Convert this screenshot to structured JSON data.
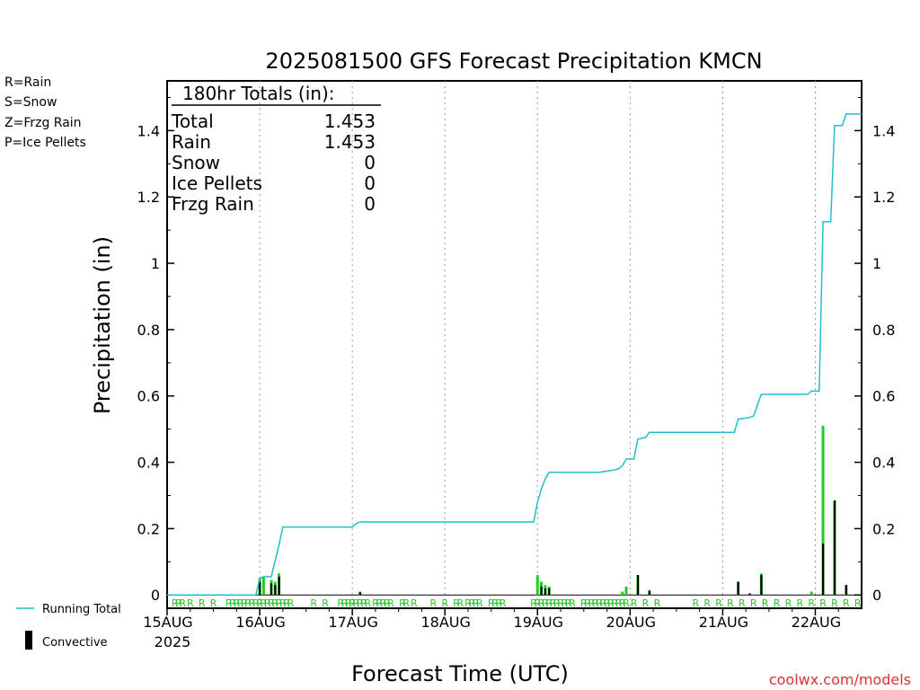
{
  "title": "2025081500 GFS Forecast Precipitation KMCN",
  "legend_types": [
    {
      "label": "R=Rain",
      "color": "#22cc22"
    },
    {
      "label": "S=Snow",
      "color": "#4444ee"
    },
    {
      "label": "Z=Frzg Rain",
      "color": "#ee8833"
    },
    {
      "label": "P=Ice Pellets",
      "color": "#ee2299"
    }
  ],
  "totals": {
    "header": "180hr Totals (in):",
    "rows": [
      {
        "label": "Total",
        "value": "1.453"
      },
      {
        "label": "Rain",
        "value": "1.453"
      },
      {
        "label": "Snow",
        "value": "0"
      },
      {
        "label": "Ice Pellets",
        "value": "0"
      },
      {
        "label": "Frzg Rain",
        "value": "0"
      }
    ]
  },
  "bottom_legend": {
    "running_total": "Running Total",
    "convective": "Convective"
  },
  "watermark": "coolwx.com/models",
  "colors": {
    "running_total": "#20c0c8",
    "total_bar": "#22cc22",
    "convective_bar": "#000000",
    "rain_marker": "#22cc22",
    "grid": "#999999"
  },
  "chart_data": {
    "type": "bar",
    "title": "2025081500 GFS Forecast Precipitation KMCN",
    "xlabel": "Forecast Time (UTC)",
    "ylabel": "Precipitation (in)",
    "xlim_hours": [
      0,
      180
    ],
    "ylim": [
      -0.04,
      1.55
    ],
    "yticks": [
      0,
      0.2,
      0.4,
      0.6,
      0.8,
      1,
      1.2,
      1.4
    ],
    "ytick_labels": [
      "0",
      "0.2",
      "0.4",
      "0.6",
      "0.8",
      "1",
      "1.2",
      "1.4"
    ],
    "xticks": [
      {
        "hour": 0,
        "label": "15AUG",
        "sublabel": "2025"
      },
      {
        "hour": 24,
        "label": "16AUG"
      },
      {
        "hour": 48,
        "label": "17AUG"
      },
      {
        "hour": 72,
        "label": "18AUG"
      },
      {
        "hour": 96,
        "label": "19AUG"
      },
      {
        "hour": 120,
        "label": "20AUG"
      },
      {
        "hour": 144,
        "label": "21AUG"
      },
      {
        "hour": 168,
        "label": "22AUG"
      }
    ],
    "grid": "vertical dotted at day boundaries",
    "series": [
      {
        "name": "Running Total",
        "type": "line",
        "points": [
          [
            0,
            0
          ],
          [
            23,
            0
          ],
          [
            24,
            0.05
          ],
          [
            25,
            0.055
          ],
          [
            27,
            0.055
          ],
          [
            29,
            0.15
          ],
          [
            30,
            0.205
          ],
          [
            48,
            0.205
          ],
          [
            49,
            0.215
          ],
          [
            50,
            0.22
          ],
          [
            95,
            0.22
          ],
          [
            96,
            0.28
          ],
          [
            97,
            0.32
          ],
          [
            98,
            0.35
          ],
          [
            99,
            0.37
          ],
          [
            112,
            0.37
          ],
          [
            115,
            0.375
          ],
          [
            117,
            0.38
          ],
          [
            118,
            0.39
          ],
          [
            119,
            0.41
          ],
          [
            121,
            0.41
          ],
          [
            122,
            0.47
          ],
          [
            124,
            0.475
          ],
          [
            125,
            0.49
          ],
          [
            147,
            0.49
          ],
          [
            148,
            0.53
          ],
          [
            151,
            0.535
          ],
          [
            152,
            0.54
          ],
          [
            154,
            0.605
          ],
          [
            166,
            0.605
          ],
          [
            167,
            0.615
          ],
          [
            169,
            0.615
          ],
          [
            170,
            1.125
          ],
          [
            172,
            1.125
          ],
          [
            173,
            1.415
          ],
          [
            175,
            1.415
          ],
          [
            176,
            1.45
          ],
          [
            180,
            1.45
          ]
        ]
      },
      {
        "name": "Total Precip",
        "type": "bar",
        "points": [
          [
            24,
            0.05
          ],
          [
            25,
            0.055
          ],
          [
            27,
            0.045
          ],
          [
            28,
            0.04
          ],
          [
            29,
            0.065
          ],
          [
            50,
            0.01
          ],
          [
            96,
            0.06
          ],
          [
            97,
            0.04
          ],
          [
            98,
            0.03
          ],
          [
            99,
            0.025
          ],
          [
            118,
            0.01
          ],
          [
            119,
            0.025
          ],
          [
            122,
            0.06
          ],
          [
            125,
            0.015
          ],
          [
            148,
            0.04
          ],
          [
            154,
            0.065
          ],
          [
            167,
            0.01
          ],
          [
            170,
            0.51
          ],
          [
            173,
            0.285
          ],
          [
            176,
            0.03
          ]
        ]
      },
      {
        "name": "Convective",
        "type": "bar",
        "points": [
          [
            24,
            0.04
          ],
          [
            27,
            0.035
          ],
          [
            28,
            0.03
          ],
          [
            29,
            0.055
          ],
          [
            50,
            0.008
          ],
          [
            97,
            0.025
          ],
          [
            98,
            0.02
          ],
          [
            99,
            0.02
          ],
          [
            122,
            0.06
          ],
          [
            125,
            0.012
          ],
          [
            148,
            0.04
          ],
          [
            151,
            0.005
          ],
          [
            154,
            0.06
          ],
          [
            170,
            0.155
          ],
          [
            173,
            0.285
          ],
          [
            176,
            0.03
          ]
        ]
      }
    ],
    "type_markers": {
      "symbol": "R",
      "hours": [
        2,
        3,
        4,
        6,
        9,
        12,
        16,
        17,
        18,
        19,
        20,
        21,
        22,
        23,
        24,
        25,
        26,
        27,
        28,
        29,
        30,
        31,
        32,
        38,
        41,
        45,
        46,
        47,
        48,
        49,
        50,
        51,
        52,
        54,
        55,
        56,
        57,
        58,
        61,
        62,
        64,
        69,
        72,
        75,
        76,
        78,
        79,
        80,
        81,
        84,
        85,
        86,
        87,
        95,
        96,
        97,
        98,
        99,
        100,
        101,
        102,
        103,
        104,
        105,
        108,
        109,
        110,
        111,
        112,
        113,
        114,
        115,
        116,
        117,
        118,
        119,
        121,
        124,
        127,
        137,
        140,
        143,
        146,
        149,
        152,
        155,
        158,
        161,
        164,
        167,
        170,
        173,
        176,
        179
      ]
    }
  }
}
